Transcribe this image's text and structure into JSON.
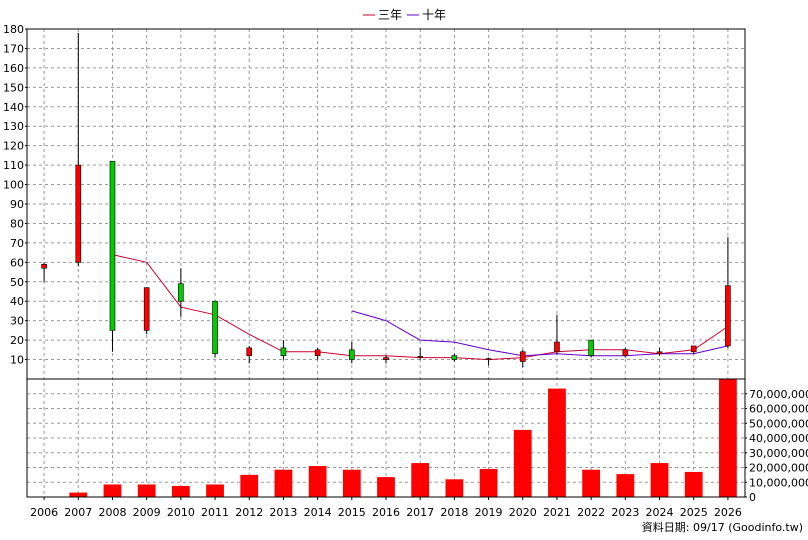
{
  "chart_data": {
    "type": "candlestick",
    "legend": [
      {
        "name": "三年",
        "color": "#cc0033"
      },
      {
        "name": "十年",
        "color": "#6600cc"
      }
    ],
    "categories": [
      "2006",
      "2007",
      "2008",
      "2009",
      "2010",
      "2011",
      "2012",
      "2013",
      "2014",
      "2015",
      "2016",
      "2017",
      "2018",
      "2019",
      "2020",
      "2021",
      "2022",
      "2023",
      "2024",
      "2025",
      "2026"
    ],
    "candles": [
      {
        "open": 57,
        "close": 59,
        "high": 60,
        "low": 50
      },
      {
        "open": 60,
        "close": 110,
        "high": 178,
        "low": 58
      },
      {
        "open": 112,
        "close": 25,
        "high": 112,
        "low": 14
      },
      {
        "open": 25,
        "close": 47,
        "high": 47,
        "low": 23
      },
      {
        "open": 49,
        "close": 40,
        "high": 57,
        "low": 32
      },
      {
        "open": 40,
        "close": 13,
        "high": 40,
        "low": 11
      },
      {
        "open": 12,
        "close": 16,
        "high": 17,
        "low": 8
      },
      {
        "open": 16,
        "close": 12,
        "high": 20,
        "low": 10
      },
      {
        "open": 12,
        "close": 15,
        "high": 16,
        "low": 10
      },
      {
        "open": 15,
        "close": 10,
        "high": 19,
        "low": 8
      },
      {
        "open": 10,
        "close": 11,
        "high": 12,
        "low": 8
      },
      {
        "open": 11,
        "close": 11.6,
        "high": 16,
        "low": 10
      },
      {
        "open": 12,
        "close": 10,
        "high": 13,
        "low": 9
      },
      {
        "open": 10,
        "close": 10.5,
        "high": 11,
        "low": 7
      },
      {
        "open": 9,
        "close": 14,
        "high": 15,
        "low": 6
      },
      {
        "open": 14,
        "close": 19,
        "high": 33,
        "low": 13
      },
      {
        "open": 20,
        "close": 12,
        "high": 20,
        "low": 11
      },
      {
        "open": 12,
        "close": 15,
        "high": 16,
        "low": 11
      },
      {
        "open": 13,
        "close": 14,
        "high": 16,
        "low": 12
      },
      {
        "open": 14,
        "close": 17,
        "high": 17,
        "low": 13
      },
      {
        "open": 17,
        "close": 48,
        "high": 73,
        "low": 16
      }
    ],
    "series": [
      {
        "name": "三年",
        "values": [
          null,
          null,
          64,
          60,
          37,
          33,
          23,
          14,
          14,
          12,
          12,
          11,
          11,
          10,
          11,
          14,
          15,
          15,
          13,
          15,
          27
        ]
      },
      {
        "name": "十年",
        "values": [
          null,
          null,
          null,
          null,
          null,
          null,
          null,
          null,
          null,
          35,
          30,
          20,
          19,
          15,
          12,
          13,
          12,
          12,
          13,
          13,
          17
        ]
      }
    ],
    "volume": [
      0,
      3000000,
      8500000,
      8500000,
      7500000,
      8500000,
      15000000,
      18500000,
      21000000,
      18500000,
      13500000,
      23000000,
      12000000,
      19000000,
      45500000,
      73500000,
      18500000,
      15500000,
      23000000,
      17000000,
      80000000
    ],
    "price_axis": {
      "min": 0,
      "max": 180,
      "ticks": [
        "10",
        "20",
        "30",
        "40",
        "50",
        "60",
        "70",
        "80",
        "90",
        "100",
        "110",
        "120",
        "130",
        "140",
        "150",
        "160",
        "170",
        "180"
      ]
    },
    "volume_axis": {
      "min": 0,
      "max": 80000000,
      "ticks": [
        "0",
        "10,000,000",
        "20,000,000",
        "30,000,000",
        "40,000,000",
        "50,000,000",
        "60,000,000",
        "70,000,000"
      ]
    },
    "up_color": "#ff0000",
    "down_color": "#00cc00",
    "volume_color": "#ff0000",
    "grid": true
  },
  "footer": {
    "source_note": "資料日期: 09/17  (Goodinfo.tw)"
  }
}
